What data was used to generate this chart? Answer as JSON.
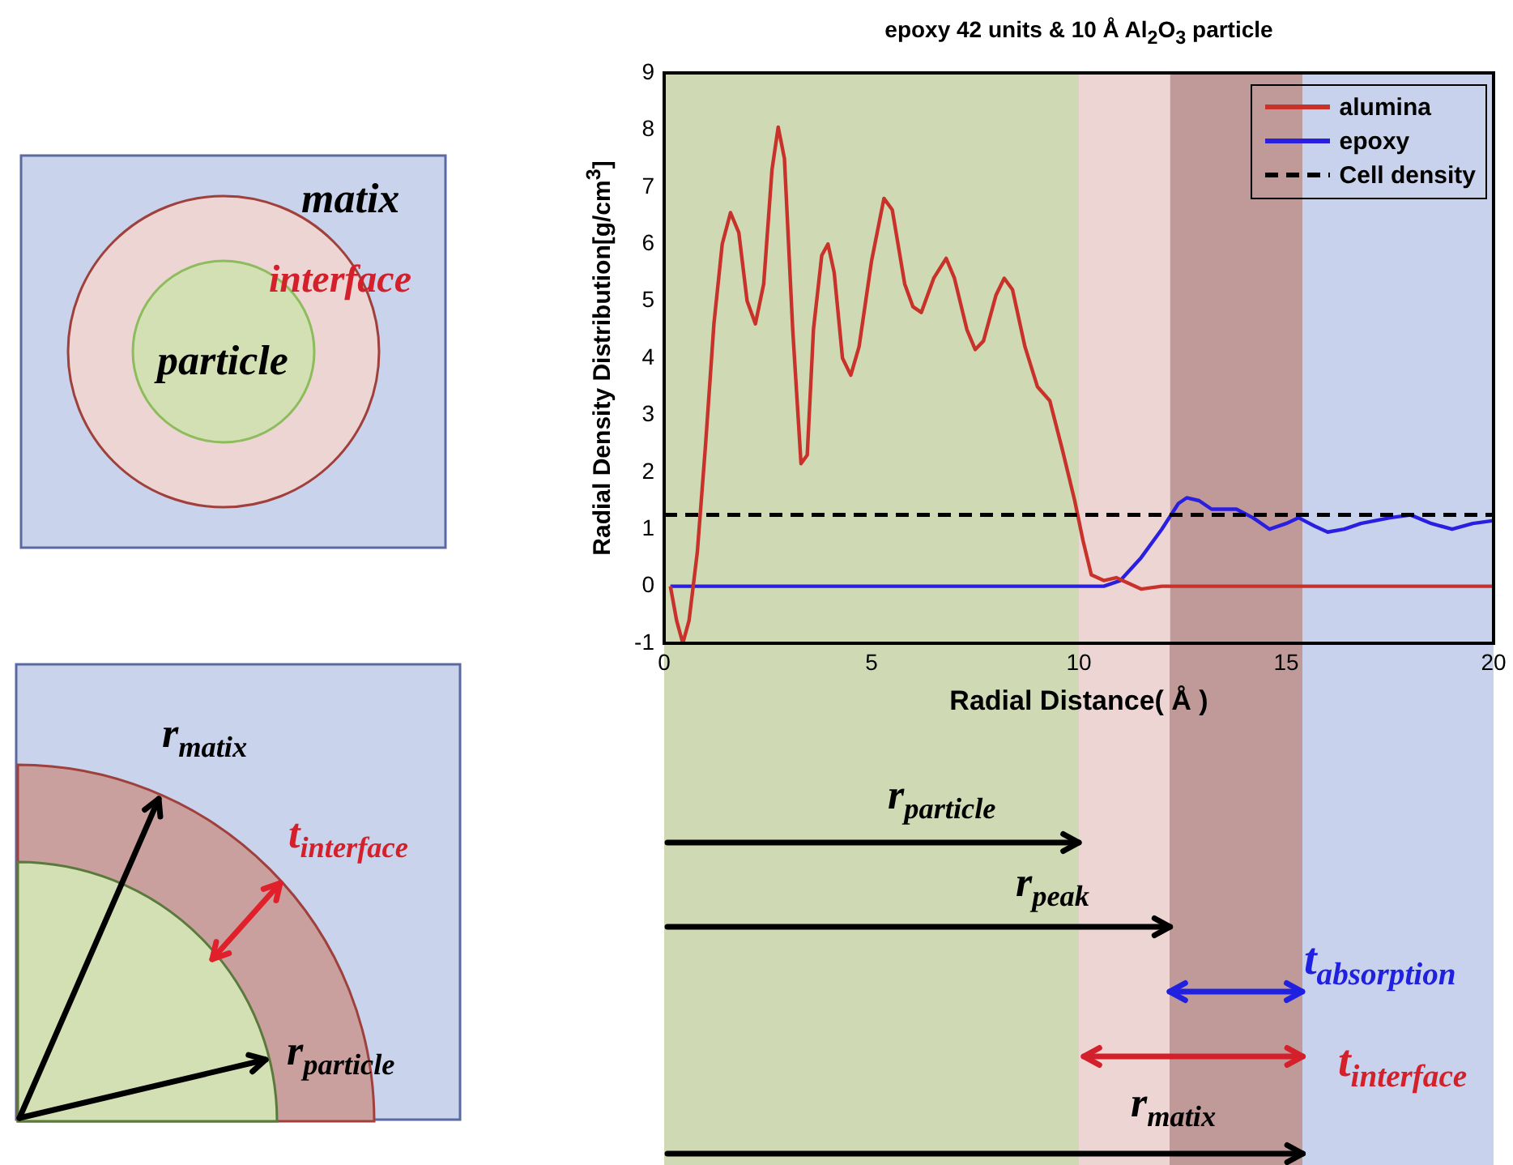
{
  "chart_data": {
    "type": "line",
    "title": "epoxy 42 units & 10 Å Al$_{2}$O$_{3}$ particle",
    "xlabel": "Radial Distance( Å )",
    "ylabel": "Radial Density Distribution[g/cm$^{3}$]",
    "xlim": [
      0,
      20
    ],
    "xticks": [
      0,
      5,
      10,
      15,
      20
    ],
    "ylim": [
      -1,
      9
    ],
    "yticks": [
      -1,
      0,
      1,
      2,
      3,
      4,
      5,
      6,
      7,
      8,
      9
    ],
    "legend": "top right",
    "series": [
      {
        "name": "alumina",
        "color": "#c8322a",
        "x": [
          0.15,
          0.3,
          0.45,
          0.6,
          0.8,
          1.0,
          1.2,
          1.4,
          1.6,
          1.8,
          2.0,
          2.2,
          2.4,
          2.6,
          2.75,
          2.9,
          3.1,
          3.3,
          3.45,
          3.6,
          3.8,
          3.95,
          4.1,
          4.3,
          4.5,
          4.7,
          5.0,
          5.3,
          5.5,
          5.8,
          6.0,
          6.2,
          6.5,
          6.8,
          7.0,
          7.3,
          7.5,
          7.7,
          8.0,
          8.2,
          8.4,
          8.7,
          9.0,
          9.3,
          9.6,
          9.9,
          10.1,
          10.3,
          10.6,
          10.9,
          11.2,
          11.5,
          12.0,
          20
        ],
        "values": [
          0,
          -0.6,
          -1.0,
          -0.6,
          0.6,
          2.5,
          4.6,
          6.0,
          6.55,
          6.2,
          5.0,
          4.6,
          5.3,
          7.3,
          8.05,
          7.5,
          4.5,
          2.15,
          2.3,
          4.5,
          5.8,
          6.0,
          5.5,
          4.0,
          3.7,
          4.2,
          5.7,
          6.8,
          6.6,
          5.3,
          4.9,
          4.8,
          5.4,
          5.75,
          5.4,
          4.5,
          4.15,
          4.3,
          5.1,
          5.4,
          5.2,
          4.2,
          3.5,
          3.25,
          2.4,
          1.5,
          0.8,
          0.2,
          0.1,
          0.15,
          0.05,
          -0.05,
          0,
          0
        ]
      },
      {
        "name": "epoxy",
        "color": "#2a1ee0",
        "x": [
          0.15,
          10.6,
          11.0,
          11.5,
          12.0,
          12.4,
          12.6,
          12.9,
          13.2,
          13.8,
          14.2,
          14.6,
          15.0,
          15.3,
          15.7,
          16.0,
          16.4,
          16.8,
          17.5,
          18.0,
          18.5,
          19.0,
          19.5,
          20
        ],
        "values": [
          0,
          0,
          0.1,
          0.5,
          1.0,
          1.45,
          1.55,
          1.5,
          1.35,
          1.35,
          1.2,
          1.0,
          1.1,
          1.2,
          1.05,
          0.95,
          1.0,
          1.1,
          1.2,
          1.25,
          1.1,
          1.0,
          1.1,
          1.15
        ]
      }
    ],
    "ref_lines": [
      {
        "axis": "y",
        "value": 1.25,
        "label": "Cell density",
        "color": "#000000",
        "line_style": "dashed"
      }
    ],
    "bands": [
      {
        "axis": "x",
        "from": 0,
        "to": 10,
        "color": "#cfdab4"
      },
      {
        "axis": "x",
        "from": 10,
        "to": 12.2,
        "color": "#ecd5d3"
      },
      {
        "axis": "x",
        "from": 12.2,
        "to": 15.4,
        "color": "#c09a98"
      },
      {
        "axis": "x",
        "from": 15.4,
        "to": 20,
        "color": "#c8d2ec"
      }
    ],
    "annotations": [
      "matix",
      "interface",
      "particle",
      "r$_{matix}$",
      "t$_{interface}$",
      "r$_{particle}$",
      "r$_{particle}$",
      "r$_{peak}$",
      "t$_{absorption}$",
      "t$_{interface}$",
      "r$_{matix}$"
    ]
  }
}
